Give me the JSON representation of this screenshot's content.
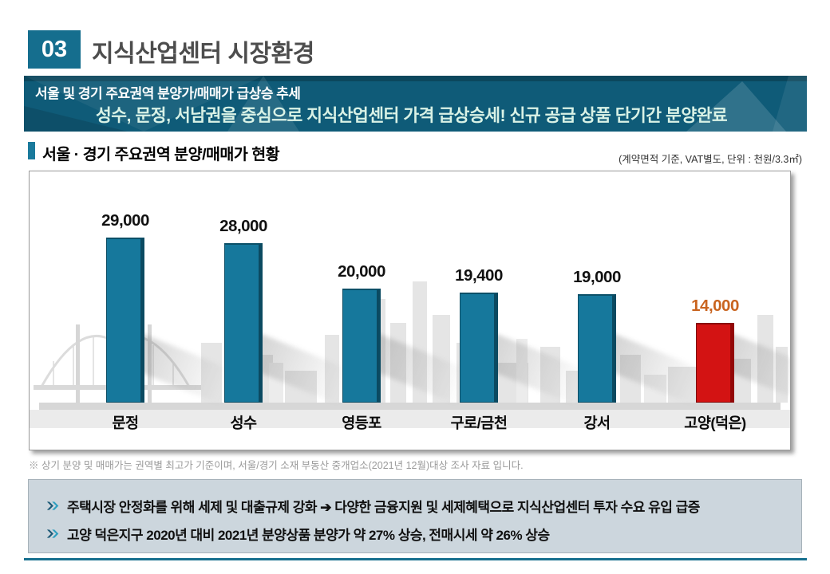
{
  "header": {
    "number": "03",
    "title": "지식산업센터 시장환경"
  },
  "banner": {
    "line1": "서울 및 경기 주요권역 분양가/매매가 급상승 추세",
    "line2": "성수, 문정, 서남권을 중심으로 지식산업센터 가격 급상승세!  신규 공급 상품 단기간 분양완료"
  },
  "section": {
    "title": "서울 · 경기 주요권역 분양/매매가 현황",
    "unit_note": "(계약면적 기준, VAT별도, 단위 : 천원/3.3㎡)"
  },
  "chart_data": {
    "type": "bar",
    "title": "서울 · 경기 주요권역 분양/매매가 현황",
    "unit": "천원/3.3㎡",
    "categories": [
      "문정",
      "성수",
      "영등포",
      "구로/금천",
      "강서",
      "고양(덕은)"
    ],
    "values": [
      29000,
      28000,
      20000,
      19400,
      19000,
      14000
    ],
    "value_labels": [
      "29,000",
      "28,000",
      "20,000",
      "19,400",
      "19,000",
      "14,000"
    ],
    "highlight_index": 5,
    "bar_color": "#16789c",
    "highlight_bar_color": "#d31313",
    "label_color": "#111111",
    "highlight_label_color": "#c9641f",
    "xlabel": "",
    "ylabel": "",
    "ylim": [
      0,
      30000
    ],
    "grid": false,
    "legend": false
  },
  "footnote": "※ 상기 분양 및 매매가는 권역별 최고가 기준이며, 서울/경기 소재 부동산 중개업소(2021년 12월)대상 조사 자료 입니다.",
  "insights": {
    "items": [
      {
        "text": "주택시장 안정화를 위해 세제 및 대출규제 강화 ➔ 다양한 금융지원 및 세제혜택으로 지식산업센터 투자 수요 유입 급증"
      },
      {
        "text": "고양 덕은지구 2020년 대비 2021년 분양상품 분양가 약 27% 상승, 전매시세 약 26% 상승"
      }
    ]
  },
  "colors": {
    "accent_teal": "#156e8e",
    "banner_bg": "#0f5b78",
    "banner_line2_text": "#d9f2e6",
    "highlight_red": "#d31313",
    "highlight_orange": "#c9641f",
    "insight_box_bg": "#ccd6dd",
    "skyline_gray": "#e5e5e5"
  }
}
